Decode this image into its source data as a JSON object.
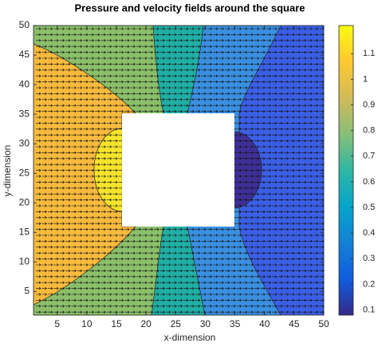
{
  "chart_data": {
    "type": "contour",
    "title": "Pressure and velocity fields around the square",
    "x_label": "x-dimension",
    "y_label": "y-dimension",
    "xlim": [
      1,
      50
    ],
    "ylim": [
      1,
      50
    ],
    "xticks": [
      5,
      10,
      15,
      20,
      25,
      30,
      35,
      40,
      45,
      50
    ],
    "yticks": [
      5,
      10,
      15,
      20,
      25,
      30,
      35,
      40,
      45,
      50
    ],
    "colorbar": {
      "lim": [
        0.08,
        1.21
      ],
      "ticks": [
        0.1,
        0.2,
        0.3,
        0.4,
        0.5,
        0.6,
        0.7,
        0.8,
        0.9,
        1,
        1.1
      ],
      "colormap": [
        "#352a87",
        "#0f5cdd",
        "#1481d6",
        "#06a4ca",
        "#2eb7a4",
        "#87bf77",
        "#d1bb59",
        "#fec832",
        "#f9fb0e"
      ]
    }
  }
}
